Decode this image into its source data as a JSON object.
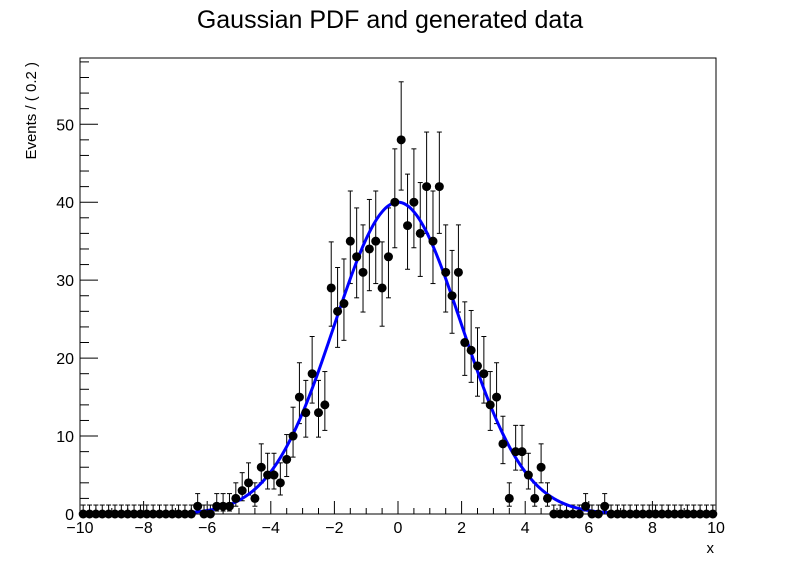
{
  "chart_data": {
    "type": "scatter",
    "title": "Gaussian PDF and generated data",
    "xlabel": "x",
    "ylabel": "Events / ( 0.2 )",
    "xlim": [
      -10,
      10
    ],
    "ylim": [
      0,
      58.5
    ],
    "grid": false,
    "x_ticks": [
      -10,
      -8,
      -6,
      -4,
      -2,
      0,
      2,
      4,
      6,
      8,
      10
    ],
    "x_tick_labels": [
      "−10",
      "−8",
      "−6",
      "−4",
      "−2",
      "0",
      "2",
      "4",
      "6",
      "8",
      "10"
    ],
    "y_ticks": [
      0,
      10,
      20,
      30,
      40,
      50
    ],
    "y_tick_labels": [
      "0",
      "10",
      "20",
      "30",
      "40",
      "50"
    ],
    "series": [
      {
        "type": "points_with_errors",
        "color": "#000000",
        "x": [
          -9.9,
          -9.7,
          -9.5,
          -9.3,
          -9.1,
          -8.9,
          -8.7,
          -8.5,
          -8.3,
          -8.1,
          -7.9,
          -7.7,
          -7.5,
          -7.3,
          -7.1,
          -6.9,
          -6.7,
          -6.5,
          -6.3,
          -6.1,
          -5.9,
          -5.7,
          -5.5,
          -5.3,
          -5.1,
          -4.9,
          -4.7,
          -4.5,
          -4.3,
          -4.1,
          -3.9,
          -3.7,
          -3.5,
          -3.3,
          -3.1,
          -2.9,
          -2.7,
          -2.5,
          -2.3,
          -2.1,
          -1.9,
          -1.7,
          -1.5,
          -1.3,
          -1.1,
          -0.9,
          -0.7,
          -0.5,
          -0.3,
          -0.1,
          0.1,
          0.3,
          0.5,
          0.7,
          0.9,
          1.1,
          1.3,
          1.5,
          1.7,
          1.9,
          2.1,
          2.3,
          2.5,
          2.7,
          2.9,
          3.1,
          3.3,
          3.5,
          3.7,
          3.9,
          4.1,
          4.3,
          4.5,
          4.7,
          4.9,
          5.1,
          5.3,
          5.5,
          5.7,
          5.9,
          6.1,
          6.3,
          6.5,
          6.7,
          6.9,
          7.1,
          7.3,
          7.5,
          7.7,
          7.9,
          8.1,
          8.3,
          8.5,
          8.7,
          8.9,
          9.1,
          9.3,
          9.5,
          9.7,
          9.9
        ],
        "y": [
          0,
          0,
          0,
          0,
          0,
          0,
          0,
          0,
          0,
          0,
          0,
          0,
          0,
          0,
          0,
          0,
          0,
          0,
          1,
          0,
          0,
          1,
          1,
          1,
          2,
          3,
          4,
          2,
          6,
          5,
          5,
          4,
          7,
          10,
          15,
          13,
          18,
          13,
          14,
          29,
          26,
          27,
          35,
          33,
          31,
          34,
          35,
          29,
          33,
          40,
          48,
          37,
          40,
          36,
          42,
          35,
          42,
          31,
          28,
          31,
          22,
          21,
          19,
          18,
          14,
          15,
          9,
          2,
          8,
          8,
          5,
          2,
          6,
          2,
          0,
          0,
          0,
          0,
          0,
          1,
          0,
          0,
          1,
          0,
          0,
          0,
          0,
          0,
          0,
          0,
          0,
          0,
          0,
          0,
          0,
          0,
          0,
          0,
          0,
          0
        ]
      },
      {
        "type": "curve",
        "name": "",
        "color": "#0000ff",
        "function": "gaussian",
        "mean": 0,
        "sigma": 2,
        "peak": 40
      }
    ]
  }
}
